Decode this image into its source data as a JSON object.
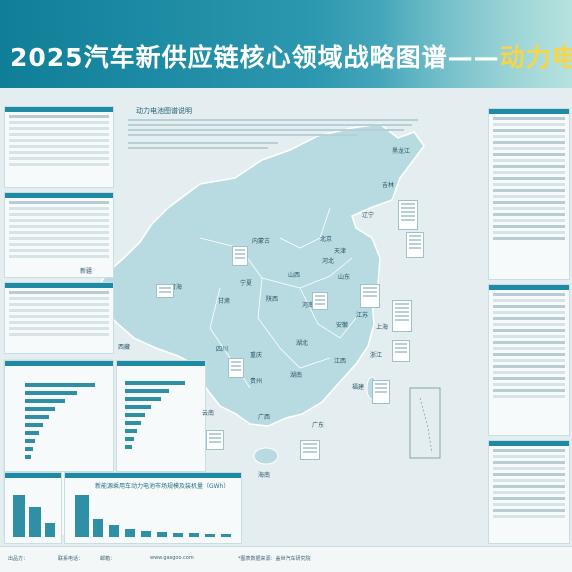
{
  "title": {
    "main": "2025汽车新供应链核心领域战略图谱",
    "dash": "——",
    "accent": "动力电"
  },
  "map": {
    "legend_title": "动力电池图谱说明",
    "provinces": [
      "黑龙江",
      "吉林",
      "辽宁",
      "内蒙古",
      "北京",
      "天津",
      "河北",
      "山西",
      "山东",
      "新疆",
      "青海",
      "甘肃",
      "宁夏",
      "陕西",
      "河南",
      "江苏",
      "安徽",
      "上海",
      "湖北",
      "西藏",
      "四川",
      "重庆",
      "浙江",
      "江西",
      "湖南",
      "贵州",
      "福建",
      "云南",
      "广西",
      "广东",
      "海南"
    ]
  },
  "charts": {
    "capacity_title": "新能源乘用车动力电池市场规模及装机量（GWh）"
  },
  "footer": [
    "出品方：",
    "联系电话：",
    "邮箱：",
    "www.gasgoo.com",
    "*图表数据来源：盖世汽车研究院"
  ],
  "colors": {
    "title_bar": "#0f7e97",
    "accent": "#f5d54a",
    "map_fill": "#b7dbe1",
    "bar": "#2f8fa5"
  }
}
